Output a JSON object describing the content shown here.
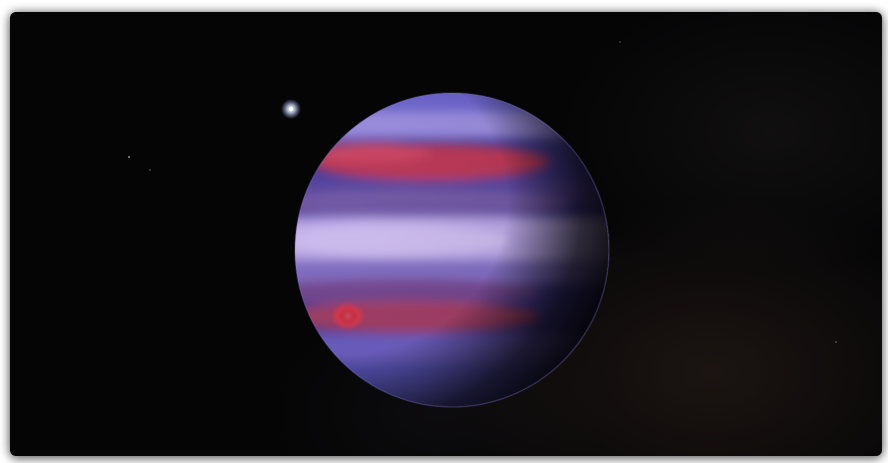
{
  "scene": {
    "subject": "planet-in-space",
    "colors": {
      "space": "#050506",
      "planet_band_violet": "#6a5bc8",
      "planet_band_lavender": "#b9a6e6",
      "planet_band_red": "#c23a55",
      "storm_spot": "#d2354a",
      "star": "#ffffff"
    },
    "icons": [
      "planet-icon",
      "star-icon",
      "storm-spot-icon"
    ]
  }
}
